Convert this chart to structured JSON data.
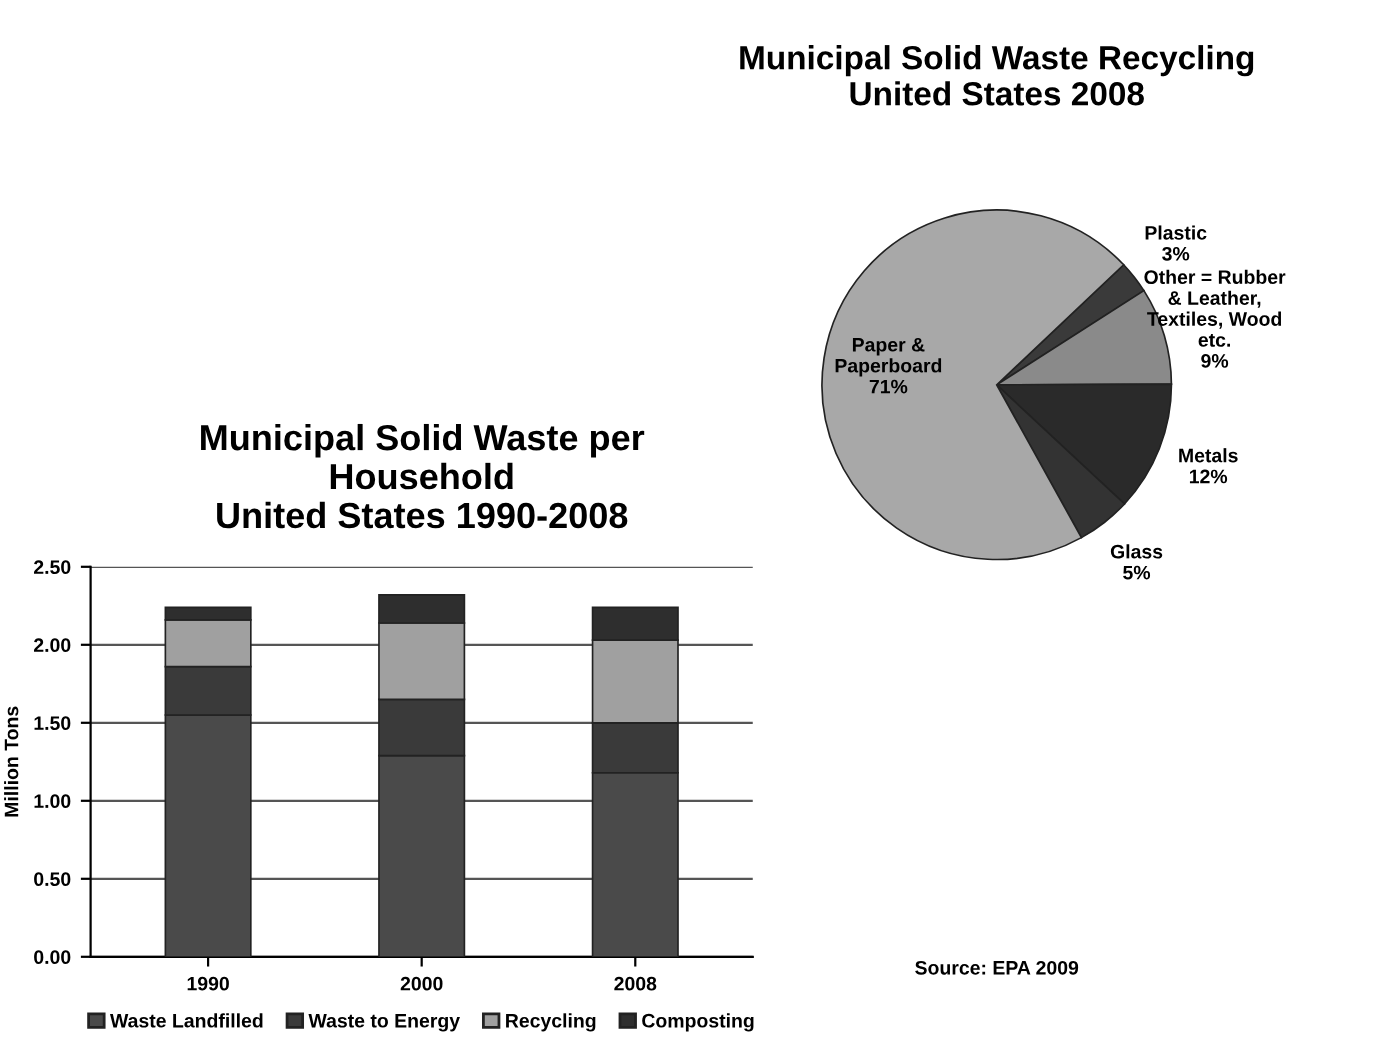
{
  "chart_data": [
    {
      "type": "bar",
      "title": "Municipal Solid Waste per\nHousehold\nUnited States 1990-2008",
      "ylabel": "Million Tons",
      "categories": [
        "1990",
        "2000",
        "2008"
      ],
      "stacked": true,
      "ylim": [
        0,
        2.5
      ],
      "yticks": [
        {
          "value": 0,
          "label": "0.00"
        },
        {
          "value": 0.5,
          "label": "0.50"
        },
        {
          "value": 1,
          "label": "1.00"
        },
        {
          "value": 1.5,
          "label": "1.50"
        },
        {
          "value": 2,
          "label": "2.00"
        },
        {
          "value": 2.5,
          "label": "2.50"
        }
      ],
      "grid": "y",
      "legend": "bottom",
      "series": [
        {
          "name": "Waste Landfilled",
          "color": "#4a4a4a",
          "values": [
            1.55,
            1.29,
            1.18
          ]
        },
        {
          "name": "Waste to Energy",
          "color": "#3a3a3a",
          "values": [
            0.31,
            0.36,
            0.32
          ]
        },
        {
          "name": "Recycling",
          "color": "#a0a0a0",
          "values": [
            0.3,
            0.49,
            0.53
          ]
        },
        {
          "name": "Composting",
          "color": "#2e2e2e",
          "values": [
            0.08,
            0.18,
            0.21
          ]
        }
      ]
    },
    {
      "type": "pie",
      "title": "Municipal Solid Waste Recycling\nUnited States 2008",
      "categories": [
        "Plastic",
        "Other = Rubber\n& Leather,\nTextiles, Wood\netc.",
        "Metals",
        "Glass",
        "Paper &\nPaperboard"
      ],
      "values": [
        3,
        9,
        12,
        5,
        71
      ],
      "value_labels": [
        "3%",
        "9%",
        "12%",
        "5%",
        "71%"
      ],
      "colors": [
        "#3a3a3a",
        "#8a8a8a",
        "#2a2a2a",
        "#333333",
        "#a8a8a8"
      ],
      "annotations": [
        "Source: EPA 2009"
      ]
    }
  ]
}
